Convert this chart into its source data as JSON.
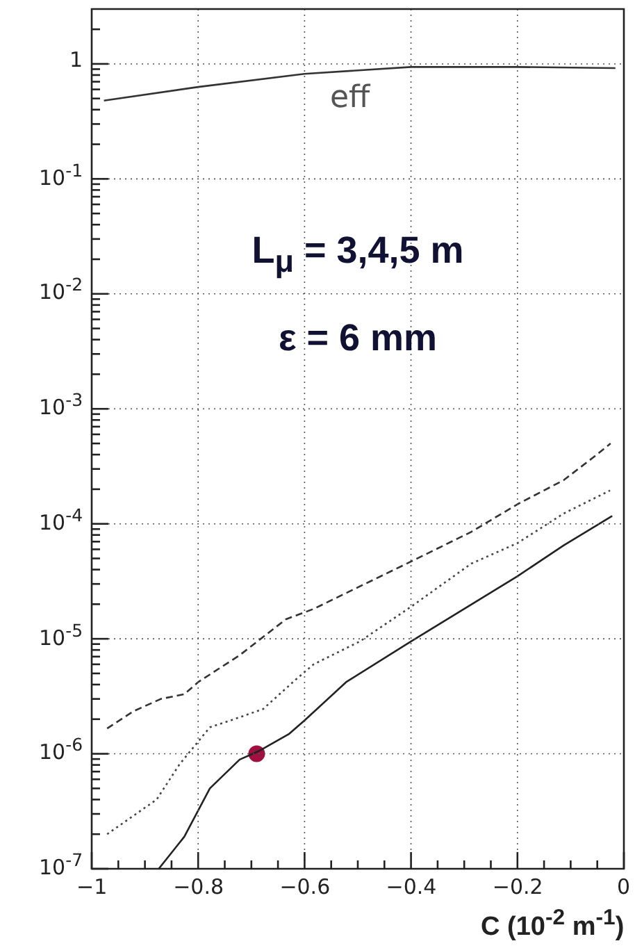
{
  "chart_data": {
    "type": "line",
    "xlabel": "C (10$^{-2}$ m$^{-1}$)",
    "log": "y",
    "grid": true,
    "marker": "none",
    "legend": false,
    "xlim": [
      -1,
      0
    ],
    "ylim": [
      1e-07,
      3
    ],
    "xticks": [
      -1,
      {
        "value": -0.95,
        "label": null
      },
      {
        "value": -0.9,
        "label": null
      },
      {
        "value": -0.85,
        "label": null
      },
      -0.8,
      {
        "value": -0.75,
        "label": null
      },
      {
        "value": -0.7,
        "label": null
      },
      {
        "value": -0.65,
        "label": null
      },
      -0.6,
      {
        "value": -0.55,
        "label": null
      },
      {
        "value": -0.5,
        "label": null
      },
      {
        "value": -0.45,
        "label": null
      },
      -0.4,
      {
        "value": -0.35,
        "label": null
      },
      {
        "value": -0.3,
        "label": null
      },
      {
        "value": -0.25,
        "label": null
      },
      -0.2,
      {
        "value": -0.15,
        "label": null
      },
      {
        "value": -0.1,
        "label": null
      },
      {
        "value": -0.05,
        "label": null
      },
      0
    ],
    "yticks": [
      {
        "value": 1e-07,
        "label": "10$^{-7}$"
      },
      {
        "value": 2e-07,
        "label": null
      },
      {
        "value": 3e-07,
        "label": null
      },
      {
        "value": 4e-07,
        "label": null
      },
      {
        "value": 5e-07,
        "label": null
      },
      {
        "value": 6e-07,
        "label": null
      },
      {
        "value": 7e-07,
        "label": null
      },
      {
        "value": 8e-07,
        "label": null
      },
      {
        "value": 9e-07,
        "label": null
      },
      {
        "value": 1e-06,
        "label": "10$^{-6}$"
      },
      {
        "value": 2e-06,
        "label": null
      },
      {
        "value": 3e-06,
        "label": null
      },
      {
        "value": 4e-06,
        "label": null
      },
      {
        "value": 5e-06,
        "label": null
      },
      {
        "value": 6e-06,
        "label": null
      },
      {
        "value": 7e-06,
        "label": null
      },
      {
        "value": 8e-06,
        "label": null
      },
      {
        "value": 9e-06,
        "label": null
      },
      {
        "value": 1e-05,
        "label": "10$^{-5}$"
      },
      {
        "value": 2e-05,
        "label": null
      },
      {
        "value": 3e-05,
        "label": null
      },
      {
        "value": 4e-05,
        "label": null
      },
      {
        "value": 5e-05,
        "label": null
      },
      {
        "value": 6e-05,
        "label": null
      },
      {
        "value": 7e-05,
        "label": null
      },
      {
        "value": 8e-05,
        "label": null
      },
      {
        "value": 9e-05,
        "label": null
      },
      {
        "value": 0.0001,
        "label": "10$^{-4}$"
      },
      {
        "value": 0.0002,
        "label": null
      },
      {
        "value": 0.0003,
        "label": null
      },
      {
        "value": 0.0004,
        "label": null
      },
      {
        "value": 0.0005,
        "label": null
      },
      {
        "value": 0.0006,
        "label": null
      },
      {
        "value": 0.0007,
        "label": null
      },
      {
        "value": 0.0008,
        "label": null
      },
      {
        "value": 0.0009,
        "label": null
      },
      {
        "value": 0.001,
        "label": "10$^{-3}$"
      },
      {
        "value": 0.002,
        "label": null
      },
      {
        "value": 0.003,
        "label": null
      },
      {
        "value": 0.004,
        "label": null
      },
      {
        "value": 0.005,
        "label": null
      },
      {
        "value": 0.006,
        "label": null
      },
      {
        "value": 0.007,
        "label": null
      },
      {
        "value": 0.008,
        "label": null
      },
      {
        "value": 0.009,
        "label": null
      },
      {
        "value": 0.01,
        "label": "10$^{-2}$"
      },
      {
        "value": 0.02,
        "label": null
      },
      {
        "value": 0.03,
        "label": null
      },
      {
        "value": 0.04,
        "label": null
      },
      {
        "value": 0.05,
        "label": null
      },
      {
        "value": 0.06,
        "label": null
      },
      {
        "value": 0.07,
        "label": null
      },
      {
        "value": 0.08,
        "label": null
      },
      {
        "value": 0.09,
        "label": null
      },
      {
        "value": 0.1,
        "label": "10$^{-1}$"
      },
      {
        "value": 0.2,
        "label": null
      },
      {
        "value": 0.3,
        "label": null
      },
      {
        "value": 0.4,
        "label": null
      },
      {
        "value": 0.5,
        "label": null
      },
      {
        "value": 0.6,
        "label": null
      },
      {
        "value": 0.7,
        "label": null
      },
      {
        "value": 0.8,
        "label": null
      },
      {
        "value": 0.9,
        "label": null
      },
      1,
      {
        "value": 2,
        "label": null
      }
    ],
    "series": [
      {
        "color": "#333333",
        "line_style": "dashed",
        "x": [
          -0.971,
          -0.922,
          -0.87,
          -0.826,
          -0.8,
          -0.722,
          -0.635,
          -0.583,
          -0.522,
          -0.4,
          -0.287,
          -0.2,
          -0.113,
          -0.057,
          -0.025
        ],
        "values": [
          1.66e-06,
          2.34e-06,
          3e-06,
          3.3e-06,
          4.2e-06,
          7.2e-06,
          1.48e-05,
          1.82e-05,
          2.5e-05,
          4.7e-05,
          8.5e-05,
          0.000148,
          0.00024,
          0.00038,
          0.0005
        ]
      },
      {
        "color": "#444444",
        "line_style": "dotted",
        "x": [
          -0.971,
          -0.878,
          -0.835,
          -0.778,
          -0.739,
          -0.678,
          -0.617,
          -0.583,
          -0.496,
          -0.4,
          -0.287,
          -0.2,
          -0.113,
          -0.026
        ],
        "values": [
          2e-07,
          4e-07,
          8.1e-07,
          1.7e-06,
          1.95e-06,
          2.45e-06,
          4.4e-06,
          6e-06,
          9.5e-06,
          1.9e-05,
          4.5e-05,
          6.8e-05,
          0.000123,
          0.000195
        ]
      },
      {
        "color": "#222222",
        "line_style": "solid",
        "x": [
          -0.874,
          -0.826,
          -0.778,
          -0.722,
          -0.687,
          -0.63,
          -0.6,
          -0.522,
          -0.4,
          -0.2,
          -0.113,
          -0.022
        ],
        "values": [
          1e-07,
          1.9e-07,
          5e-07,
          8.9e-07,
          1.05e-06,
          1.48e-06,
          1.95e-06,
          4.2e-06,
          9.5e-06,
          3.5e-05,
          6.5e-05,
          0.000117
        ]
      },
      {
        "color": "#333333",
        "line_style": "solid",
        "x": [
          -0.977,
          -0.8,
          -0.6,
          -0.4,
          -0.2,
          -0.016
        ],
        "values": [
          0.48,
          0.63,
          0.82,
          0.94,
          0.94,
          0.92
        ]
      },
      {
        "type": "scatter",
        "marker": "circle",
        "color": "#a01040",
        "x": [
          -0.69
        ],
        "values": [
          1e-06
        ]
      }
    ],
    "annotations": [
      "eff",
      "L$_{μ}$ = 3,4,5 m",
      "ε = 6 mm"
    ]
  }
}
